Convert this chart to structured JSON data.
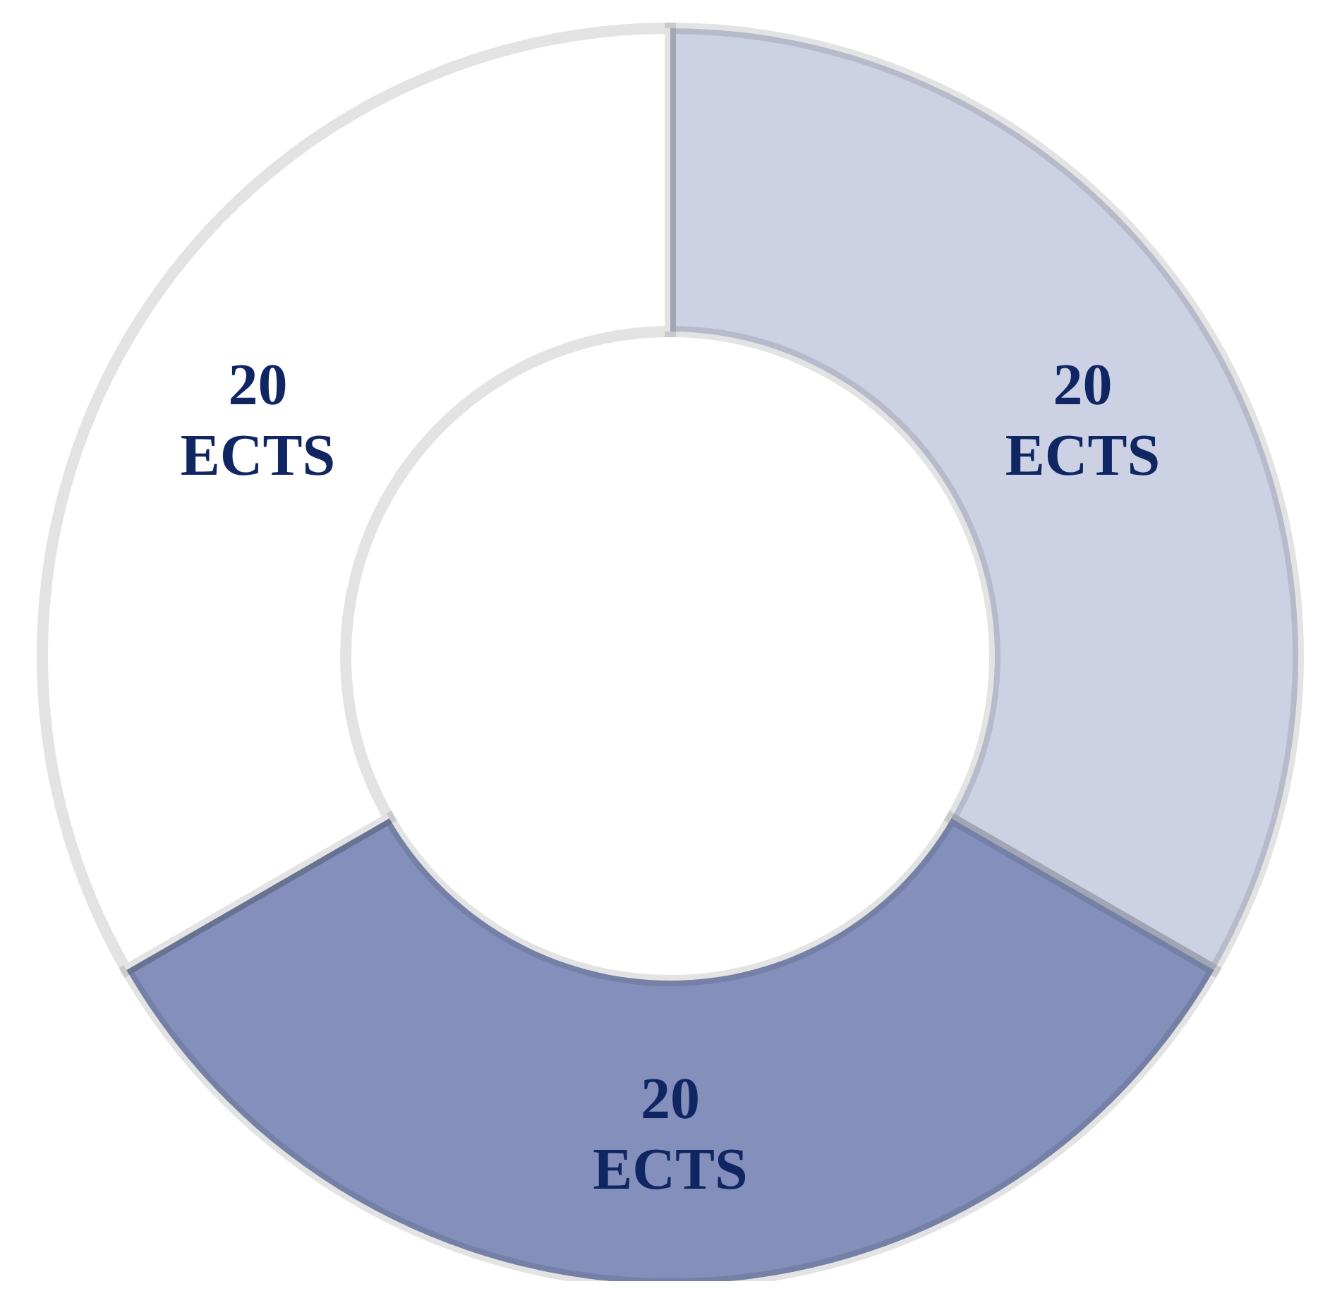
{
  "chart_data": {
    "type": "donut",
    "categories": [
      null,
      null,
      null
    ],
    "values": [
      20,
      20,
      20
    ],
    "colors": [
      "#cdd1e4",
      "#8490bb",
      "#ffffff"
    ],
    "value_labels": [
      "20 ECTS",
      "20 ECTS",
      "20 ECTS"
    ],
    "legend": false
  }
}
